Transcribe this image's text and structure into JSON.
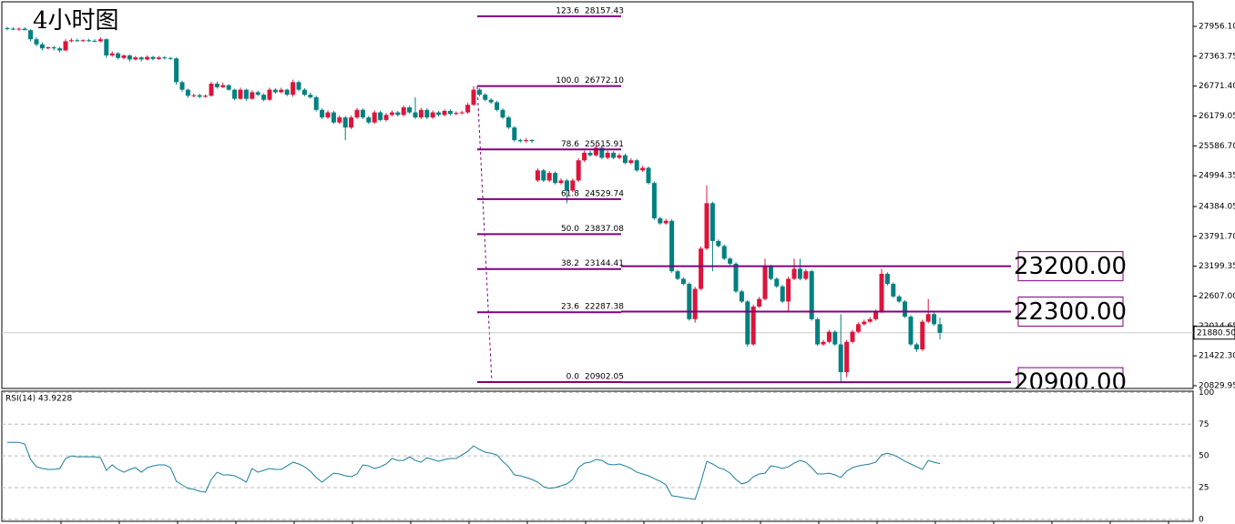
{
  "chart_data": [
    {
      "type": "candlestick",
      "title": "4小时图",
      "colors": {
        "up": "#dc143c",
        "down": "#008080"
      },
      "ylim": [
        20776,
        28479
      ],
      "yticks": [
        {
          "value": 27956.1,
          "label": "27956.10"
        },
        27363.75,
        {
          "value": 26771.4,
          "label": "26771.40"
        },
        26179.05,
        {
          "value": 25586.7,
          "label": "25586.70"
        },
        24994.35,
        24384.05,
        {
          "value": 23791.7,
          "label": "23791.70"
        },
        23199.35,
        {
          "value": 22607,
          "label": "22607.00"
        },
        22014.65,
        {
          "value": 21422.3,
          "label": "21422.30"
        },
        20829.95
      ],
      "last_price": {
        "value": 21880.5,
        "label": "21880.50"
      },
      "fib": {
        "color": "#800080",
        "levels": [
          {
            "ratio": 123.6,
            "price": 28157.43
          },
          {
            "ratio": {
              "value": 100,
              "label": "100.0"
            },
            "price": {
              "value": 26772.1,
              "label": "26772.10"
            }
          },
          {
            "ratio": 78.6,
            "price": 25515.91
          },
          {
            "ratio": 61.8,
            "price": 24529.74
          },
          {
            "ratio": {
              "value": 50,
              "label": "50.0"
            },
            "price": 23837.08
          },
          {
            "ratio": 38.2,
            "price": 23144.41
          },
          {
            "ratio": 23.6,
            "price": 22287.38
          },
          {
            "ratio": {
              "value": 0,
              "label": "0.0"
            },
            "price": 20902.05
          }
        ]
      },
      "levels": [
        {
          "value": 23200,
          "label": "23200.00"
        },
        {
          "value": 22300,
          "label": "22300.00"
        },
        {
          "value": 20900,
          "label": "20900.00"
        }
      ],
      "ohlc": [
        [
          27920,
          27950,
          27880,
          27910
        ],
        [
          27910,
          27940,
          27880,
          27900
        ],
        [
          27900,
          27930,
          27870,
          27910
        ],
        [
          27910,
          27940,
          27880,
          27880
        ],
        [
          27880,
          27900,
          27660,
          27700
        ],
        [
          27700,
          27740,
          27560,
          27600
        ],
        [
          27600,
          27640,
          27480,
          27520
        ],
        [
          27520,
          27560,
          27500,
          27540
        ],
        [
          27540,
          27570,
          27480,
          27520
        ],
        [
          27520,
          27550,
          27440,
          27480
        ],
        [
          27480,
          27700,
          27460,
          27660
        ],
        [
          27660,
          27720,
          27640,
          27680
        ],
        [
          27680,
          27710,
          27650,
          27670
        ],
        [
          27670,
          27700,
          27650,
          27680
        ],
        [
          27680,
          27710,
          27650,
          27670
        ],
        [
          27670,
          27700,
          27640,
          27660
        ],
        [
          27660,
          27740,
          27640,
          27700
        ],
        [
          27700,
          27720,
          27330,
          27380
        ],
        [
          27380,
          27460,
          27350,
          27420
        ],
        [
          27420,
          27450,
          27300,
          27330
        ],
        [
          27330,
          27400,
          27300,
          27380
        ],
        [
          27380,
          27400,
          27260,
          27300
        ],
        [
          27300,
          27370,
          27280,
          27340
        ],
        [
          27340,
          27360,
          27260,
          27300
        ],
        [
          27300,
          27380,
          27280,
          27350
        ],
        [
          27350,
          27370,
          27280,
          27310
        ],
        [
          27310,
          27370,
          27290,
          27340
        ],
        [
          27340,
          27370,
          27300,
          27330
        ],
        [
          27330,
          27350,
          27290,
          27320
        ],
        [
          27320,
          27340,
          26800,
          26850
        ],
        [
          26850,
          26880,
          26660,
          26700
        ],
        [
          26700,
          26720,
          26540,
          26580
        ],
        [
          26580,
          26620,
          26550,
          26590
        ],
        [
          26590,
          26620,
          26530,
          26560
        ],
        [
          26560,
          26610,
          26540,
          26580
        ],
        [
          26580,
          26860,
          26560,
          26820
        ],
        [
          26820,
          26860,
          26720,
          26750
        ],
        [
          26750,
          26840,
          26730,
          26790
        ],
        [
          26790,
          26810,
          26680,
          26700
        ],
        [
          26700,
          26720,
          26490,
          26520
        ],
        [
          26520,
          26740,
          26500,
          26700
        ],
        [
          26700,
          26720,
          26480,
          26520
        ],
        [
          26520,
          26690,
          26500,
          26650
        ],
        [
          26650,
          26680,
          26570,
          26600
        ],
        [
          26600,
          26630,
          26470,
          26500
        ],
        [
          26500,
          26740,
          26480,
          26700
        ],
        [
          26700,
          26730,
          26620,
          26650
        ],
        [
          26650,
          26740,
          26630,
          26700
        ],
        [
          26700,
          26720,
          26570,
          26600
        ],
        [
          26600,
          26900,
          26560,
          26850
        ],
        [
          26850,
          26880,
          26670,
          26700
        ],
        [
          26700,
          26730,
          26570,
          26600
        ],
        [
          26600,
          26640,
          26520,
          26550
        ],
        [
          26550,
          26580,
          26270,
          26300
        ],
        [
          26300,
          26330,
          26120,
          26150
        ],
        [
          26150,
          26290,
          26120,
          26250
        ],
        [
          26250,
          26280,
          26020,
          26050
        ],
        [
          26050,
          26190,
          26020,
          26150
        ],
        [
          26150,
          26180,
          25700,
          25950
        ],
        [
          25950,
          26190,
          25920,
          26150
        ],
        [
          26150,
          26340,
          26120,
          26300
        ],
        [
          26300,
          26330,
          26120,
          26150
        ],
        [
          26150,
          26180,
          26020,
          26050
        ],
        [
          26050,
          26290,
          26020,
          26250
        ],
        [
          26250,
          26280,
          26070,
          26100
        ],
        [
          26100,
          26240,
          26070,
          26200
        ],
        [
          26200,
          26290,
          26170,
          26250
        ],
        [
          26250,
          26280,
          26170,
          26200
        ],
        [
          26200,
          26390,
          26170,
          26350
        ],
        [
          26350,
          26380,
          26220,
          26250
        ],
        [
          26250,
          26550,
          26120,
          26150
        ],
        [
          26150,
          26340,
          26120,
          26300
        ],
        [
          26300,
          26330,
          26120,
          26150
        ],
        [
          26150,
          26290,
          26120,
          26250
        ],
        [
          26250,
          26280,
          26170,
          26200
        ],
        [
          26200,
          26310,
          26170,
          26280
        ],
        [
          26280,
          26310,
          26190,
          26220
        ],
        [
          26220,
          26270,
          26190,
          26240
        ],
        [
          26240,
          26280,
          26210,
          26250
        ],
        [
          26250,
          26440,
          26220,
          26400
        ],
        [
          26400,
          26772,
          26380,
          26700
        ],
        [
          26700,
          26730,
          26570,
          26600
        ],
        [
          26600,
          26630,
          26470,
          26500
        ],
        [
          26500,
          26530,
          26420,
          26450
        ],
        [
          26450,
          26480,
          26270,
          26300
        ],
        [
          26300,
          26330,
          26120,
          26150
        ],
        [
          26150,
          26180,
          25920,
          25950
        ],
        [
          25950,
          25980,
          25670,
          25700
        ],
        [
          25700,
          25730,
          25650,
          25680
        ],
        [
          25680,
          25740,
          25650,
          25700
        ],
        [
          25700,
          25720,
          25650,
          25680
        ],
        [
          24900,
          25140,
          24870,
          25100
        ],
        [
          25100,
          25130,
          24870,
          24900
        ],
        [
          24900,
          25090,
          24870,
          25050
        ],
        [
          25050,
          25080,
          24820,
          24850
        ],
        [
          24850,
          24940,
          24820,
          24900
        ],
        [
          24900,
          24930,
          24450,
          24700
        ],
        [
          24700,
          24940,
          24670,
          24900
        ],
        [
          24900,
          25340,
          24870,
          25300
        ],
        [
          25300,
          25490,
          25270,
          25450
        ],
        [
          25450,
          25490,
          25370,
          25400
        ],
        [
          25400,
          25650,
          25370,
          25550
        ],
        [
          25550,
          25580,
          25320,
          25350
        ],
        [
          25350,
          25490,
          25320,
          25450
        ],
        [
          25450,
          25480,
          25320,
          25350
        ],
        [
          25350,
          25440,
          25320,
          25400
        ],
        [
          25400,
          25430,
          25220,
          25250
        ],
        [
          25250,
          25340,
          25220,
          25300
        ],
        [
          25300,
          25330,
          25070,
          25100
        ],
        [
          25100,
          25190,
          25070,
          25150
        ],
        [
          25150,
          25180,
          24820,
          24850
        ],
        [
          24850,
          24880,
          24120,
          24150
        ],
        [
          24150,
          24180,
          24020,
          24050
        ],
        [
          24050,
          24140,
          24020,
          24100
        ],
        [
          24100,
          24130,
          23070,
          23100
        ],
        [
          23100,
          23130,
          22920,
          22950
        ],
        [
          22950,
          22980,
          22820,
          22850
        ],
        [
          22850,
          22880,
          22120,
          22150
        ],
        [
          22150,
          22790,
          22080,
          22750
        ],
        [
          22750,
          23590,
          22720,
          23550
        ],
        [
          23550,
          24800,
          23520,
          24450
        ],
        [
          24450,
          24480,
          23100,
          23700
        ],
        [
          23700,
          23730,
          23570,
          23600
        ],
        [
          23600,
          23630,
          23320,
          23350
        ],
        [
          23350,
          23380,
          23220,
          23250
        ],
        [
          23250,
          23280,
          22670,
          22700
        ],
        [
          22700,
          22730,
          22470,
          22500
        ],
        [
          22500,
          22530,
          21600,
          21650
        ],
        [
          21650,
          22440,
          21620,
          22400
        ],
        [
          22400,
          22590,
          22370,
          22550
        ],
        [
          22550,
          23350,
          22520,
          23200
        ],
        [
          23200,
          23230,
          22920,
          22950
        ],
        [
          22950,
          22980,
          22770,
          22800
        ],
        [
          22800,
          22830,
          22470,
          22500
        ],
        [
          22500,
          22990,
          22300,
          22950
        ],
        [
          22950,
          23350,
          22920,
          23150
        ],
        [
          23150,
          23350,
          22920,
          22950
        ],
        [
          22950,
          23140,
          22920,
          23100
        ],
        [
          23100,
          23130,
          22120,
          22150
        ],
        [
          22150,
          22180,
          21620,
          21650
        ],
        [
          21650,
          21740,
          21620,
          21700
        ],
        [
          21700,
          21940,
          21670,
          21900
        ],
        [
          21900,
          21930,
          21620,
          21650
        ],
        [
          21650,
          22250,
          20900,
          21100
        ],
        [
          21100,
          21740,
          21000,
          21700
        ],
        [
          21700,
          21940,
          21670,
          21900
        ],
        [
          21900,
          22090,
          21870,
          22050
        ],
        [
          22050,
          22140,
          22020,
          22100
        ],
        [
          22100,
          22190,
          22070,
          22150
        ],
        [
          22150,
          22340,
          22120,
          22300
        ],
        [
          22300,
          23150,
          22270,
          23050
        ],
        [
          23050,
          23080,
          22820,
          22850
        ],
        [
          22850,
          22880,
          22570,
          22600
        ],
        [
          22600,
          22630,
          22470,
          22500
        ],
        [
          22500,
          22530,
          22170,
          22200
        ],
        [
          22200,
          22230,
          21620,
          21650
        ],
        [
          21650,
          21680,
          21500,
          21550
        ],
        [
          21550,
          22140,
          21520,
          22100
        ],
        [
          22100,
          22550,
          22070,
          22250
        ],
        [
          22250,
          22280,
          22020,
          22050
        ],
        [
          22050,
          22180,
          21750,
          21880
        ]
      ]
    },
    {
      "type": "line",
      "title": "RSI(14) 43.9228",
      "ylim": [
        -3,
        101
      ],
      "yticks": [
        100,
        75,
        50,
        25,
        0
      ],
      "grid": true,
      "series": [
        {
          "color": "#1a7f9f",
          "values": [
            60.7,
            60.7,
            60.7,
            59.3,
            47.1,
            41.4,
            40,
            39.3,
            39.3,
            40,
            47.9,
            50,
            49.3,
            49.3,
            49.3,
            49.3,
            48.6,
            38.6,
            42.9,
            39.3,
            37.1,
            39.3,
            40.7,
            37.1,
            40.7,
            42.1,
            42.9,
            42.9,
            40.7,
            30,
            27.1,
            24.3,
            23.6,
            22.1,
            21.4,
            31.4,
            37.1,
            35,
            35,
            34.3,
            32.1,
            29.3,
            40,
            37.1,
            38.6,
            40,
            39.3,
            39.3,
            42.1,
            45,
            43.6,
            41.4,
            37.9,
            32.9,
            29.3,
            32.9,
            36.4,
            35.7,
            34.3,
            33.6,
            35.7,
            42.9,
            42.1,
            40,
            41.4,
            43.6,
            47.9,
            46.4,
            46.4,
            49.3,
            46.4,
            45,
            48.6,
            47.1,
            45.7,
            47.1,
            47.9,
            47.9,
            50.7,
            53.6,
            57.9,
            55,
            52.9,
            52.1,
            50.7,
            45.7,
            41.4,
            35,
            34.3,
            32.9,
            31.4,
            29.3,
            25.7,
            24.3,
            25,
            26.4,
            27.9,
            31.4,
            40.7,
            44.3,
            45,
            47.1,
            46.4,
            43.6,
            42.9,
            43.6,
            42.1,
            40,
            37.1,
            35.7,
            34.3,
            32.1,
            30,
            27.1,
            18.6,
            17.9,
            17.1,
            16.4,
            15.7,
            29.3,
            45.7,
            43.6,
            40.7,
            39.3,
            36.4,
            31.4,
            27.9,
            29.3,
            33.6,
            35.7,
            36.4,
            42.1,
            41.4,
            40,
            41.4,
            44.3,
            46.4,
            45,
            40.7,
            35.7,
            35.7,
            36.4,
            35,
            32.9,
            37.9,
            40.7,
            42.1,
            42.9,
            43.6,
            45,
            50.7,
            52.1,
            50.7,
            48.6,
            45.7,
            43.6,
            41.4,
            39.3,
            46.4,
            45,
            43.9
          ]
        }
      ]
    }
  ]
}
